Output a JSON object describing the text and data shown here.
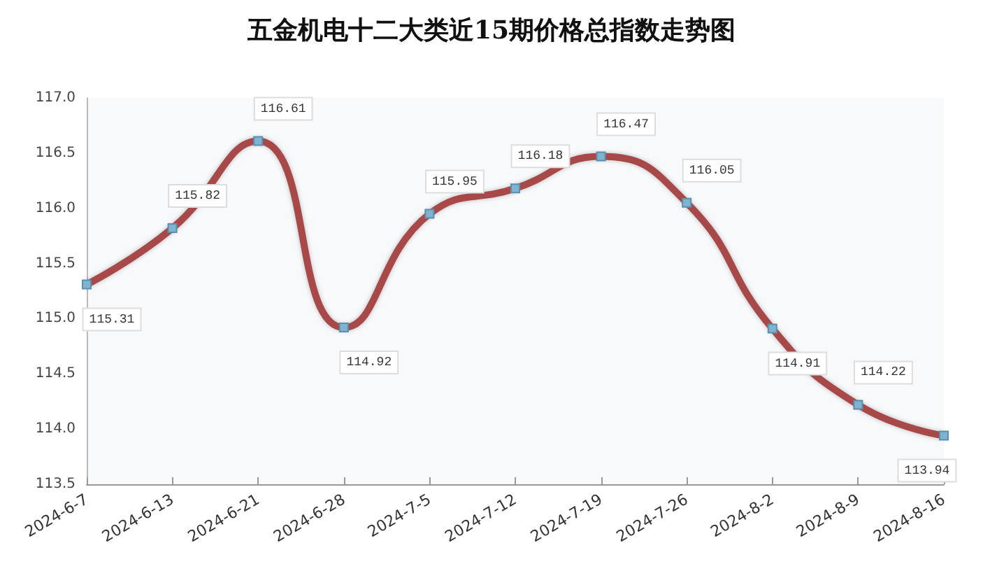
{
  "chart_data": {
    "type": "line",
    "title": "五金机电十二大类近15期价格总指数走势图",
    "categories": [
      "2024-6-7",
      "2024-6-13",
      "2024-6-21",
      "2024-6-28",
      "2024-7-5",
      "2024-7-12",
      "2024-7-19",
      "2024-7-26",
      "2024-8-2",
      "2024-8-9",
      "2024-8-16"
    ],
    "series": [
      {
        "color": "#a84848",
        "values": [
          115.31,
          115.82,
          116.61,
          114.92,
          115.95,
          116.18,
          116.47,
          116.05,
          114.91,
          114.22,
          113.94
        ]
      }
    ],
    "ylim": [
      113.5,
      117.0
    ],
    "yticks": [
      113.5,
      {
        "value": 114,
        "label": "114.0"
      },
      114.5,
      {
        "value": 115,
        "label": "115.0"
      },
      115.5,
      {
        "value": 116,
        "label": "116.0"
      },
      116.5,
      {
        "value": 117,
        "label": "117.0"
      }
    ],
    "data_labels": true,
    "marker": "square",
    "line_style": "solid",
    "grid": false
  }
}
